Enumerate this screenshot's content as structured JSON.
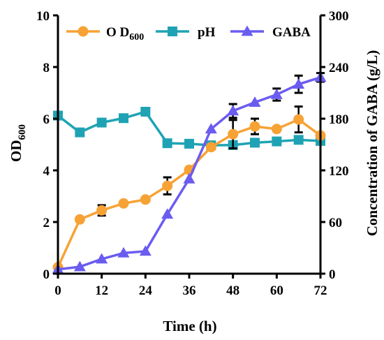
{
  "chart_data": {
    "type": "line",
    "x": [
      0,
      6,
      12,
      18,
      24,
      30,
      36,
      42,
      48,
      54,
      60,
      66,
      72
    ],
    "xlabel": "Time (h)",
    "xlim": [
      0,
      72
    ],
    "xticks": [
      0,
      12,
      24,
      36,
      48,
      60,
      72
    ],
    "left_axis": {
      "label_main": "OD",
      "label_sub": "600",
      "ylim": [
        0,
        10
      ],
      "ticks": [
        0,
        2,
        4,
        6,
        8,
        10
      ]
    },
    "right_axis": {
      "label": "Concentration of GABA (g/L)",
      "ylim": [
        0,
        300
      ],
      "ticks": [
        0,
        60,
        120,
        180,
        240,
        300
      ]
    },
    "legend_position": "top",
    "series": [
      {
        "name_main": "O D",
        "name_sub": "600",
        "axis": "left",
        "marker": "circle",
        "color": "#F7A234",
        "values": [
          0.25,
          2.1,
          2.45,
          2.72,
          2.87,
          3.4,
          4.02,
          4.9,
          5.4,
          5.7,
          5.6,
          5.97,
          5.35
        ],
        "error": [
          0,
          0,
          0.2,
          0,
          0,
          0.33,
          0,
          0,
          0.55,
          0.3,
          0,
          0.5,
          0
        ]
      },
      {
        "name": "pH",
        "axis": "left",
        "marker": "square",
        "color": "#1FA3B4",
        "values": [
          6.12,
          5.47,
          5.85,
          6.02,
          6.27,
          5.05,
          5.03,
          4.97,
          4.98,
          5.07,
          5.12,
          5.18,
          5.14
        ],
        "error": [
          0,
          0,
          0,
          0,
          0,
          0,
          0,
          0,
          0,
          0,
          0,
          0,
          0
        ]
      },
      {
        "name": "GABA",
        "axis": "right",
        "marker": "triangle",
        "color": "#6B5CF0",
        "values": [
          5,
          8,
          17,
          24,
          26,
          69,
          110,
          168,
          189,
          199,
          208,
          220,
          228
        ],
        "error": [
          0,
          0,
          0,
          0,
          0,
          0,
          0,
          0,
          8,
          0,
          7,
          10,
          5
        ]
      }
    ]
  }
}
